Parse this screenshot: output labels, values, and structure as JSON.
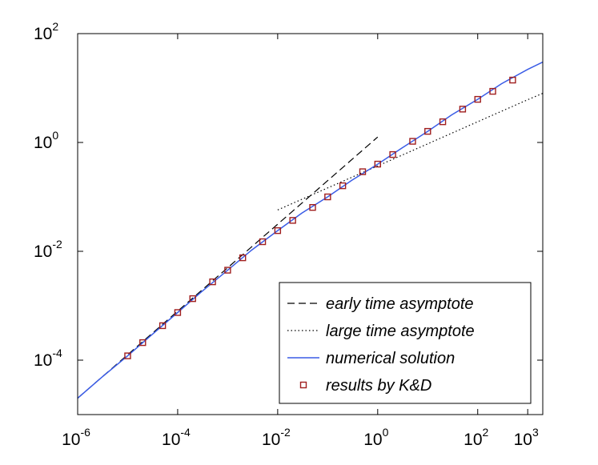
{
  "chart_data": {
    "type": "line",
    "title": "",
    "xlabel": "",
    "ylabel": "",
    "xscale": "log",
    "yscale": "log",
    "xlim": [
      1e-06,
      2000
    ],
    "ylim": [
      1e-05,
      100
    ],
    "grid": false,
    "legend_position": "bottom-right",
    "x_ticks": [
      {
        "base": "10",
        "exp": "-6",
        "value": 1e-06
      },
      {
        "base": "10",
        "exp": "-4",
        "value": 0.0001
      },
      {
        "base": "10",
        "exp": "-2",
        "value": 0.01
      },
      {
        "base": "10",
        "exp": "0",
        "value": 1
      },
      {
        "base": "10",
        "exp": "2",
        "value": 100
      },
      {
        "base": "10",
        "exp": "3",
        "value": 1000
      }
    ],
    "y_ticks": [
      {
        "base": "10",
        "exp": "-4",
        "value": 0.0001
      },
      {
        "base": "10",
        "exp": "-2",
        "value": 0.01
      },
      {
        "base": "10",
        "exp": "0",
        "value": 1
      },
      {
        "base": "10",
        "exp": "2",
        "value": 100
      }
    ],
    "series": [
      {
        "name": "early time asymptote",
        "style": "dashed",
        "color": "#000000",
        "x": [
          1e-06,
          1e-05,
          0.0001,
          0.001,
          0.01,
          0.1,
          1
        ],
        "y": [
          2e-05,
          0.000126,
          0.000794,
          0.005,
          0.0315,
          0.199,
          1.26
        ]
      },
      {
        "name": "large time asymptote",
        "style": "dotted",
        "color": "#000000",
        "x": [
          0.01,
          0.1,
          1,
          10,
          100,
          1000,
          2000
        ],
        "y": [
          0.0575,
          0.146,
          0.371,
          0.943,
          2.4,
          6.1,
          8.0
        ]
      },
      {
        "name": "numerical solution",
        "style": "solid",
        "color": "#3a5ce6",
        "x": [
          1e-06,
          3e-06,
          1e-05,
          3e-05,
          0.0001,
          0.0003,
          0.001,
          0.003,
          0.01,
          0.03,
          0.1,
          0.3,
          1,
          3,
          10,
          30,
          100,
          300,
          1000,
          2000
        ],
        "y": [
          2e-05,
          4.8e-05,
          0.00012,
          0.00029,
          0.00075,
          0.0018,
          0.0045,
          0.0105,
          0.024,
          0.05,
          0.1,
          0.2,
          0.4,
          0.78,
          1.6,
          3.2,
          6.2,
          12,
          22,
          30
        ]
      },
      {
        "name": "results by K&D",
        "style": "markers",
        "marker": "square",
        "color": "#a01e1e",
        "x": [
          1e-05,
          2e-05,
          5e-05,
          0.0001,
          0.0002,
          0.0005,
          0.001,
          0.002,
          0.005,
          0.01,
          0.02,
          0.05,
          0.1,
          0.2,
          0.5,
          1,
          2,
          5,
          10,
          20,
          50,
          100,
          200,
          500
        ],
        "y": [
          0.00012,
          0.00021,
          0.00043,
          0.00075,
          0.00135,
          0.00275,
          0.0045,
          0.0076,
          0.015,
          0.024,
          0.037,
          0.064,
          0.1,
          0.16,
          0.29,
          0.4,
          0.6,
          1.05,
          1.6,
          2.4,
          4.1,
          6.2,
          8.7,
          14
        ]
      }
    ]
  }
}
